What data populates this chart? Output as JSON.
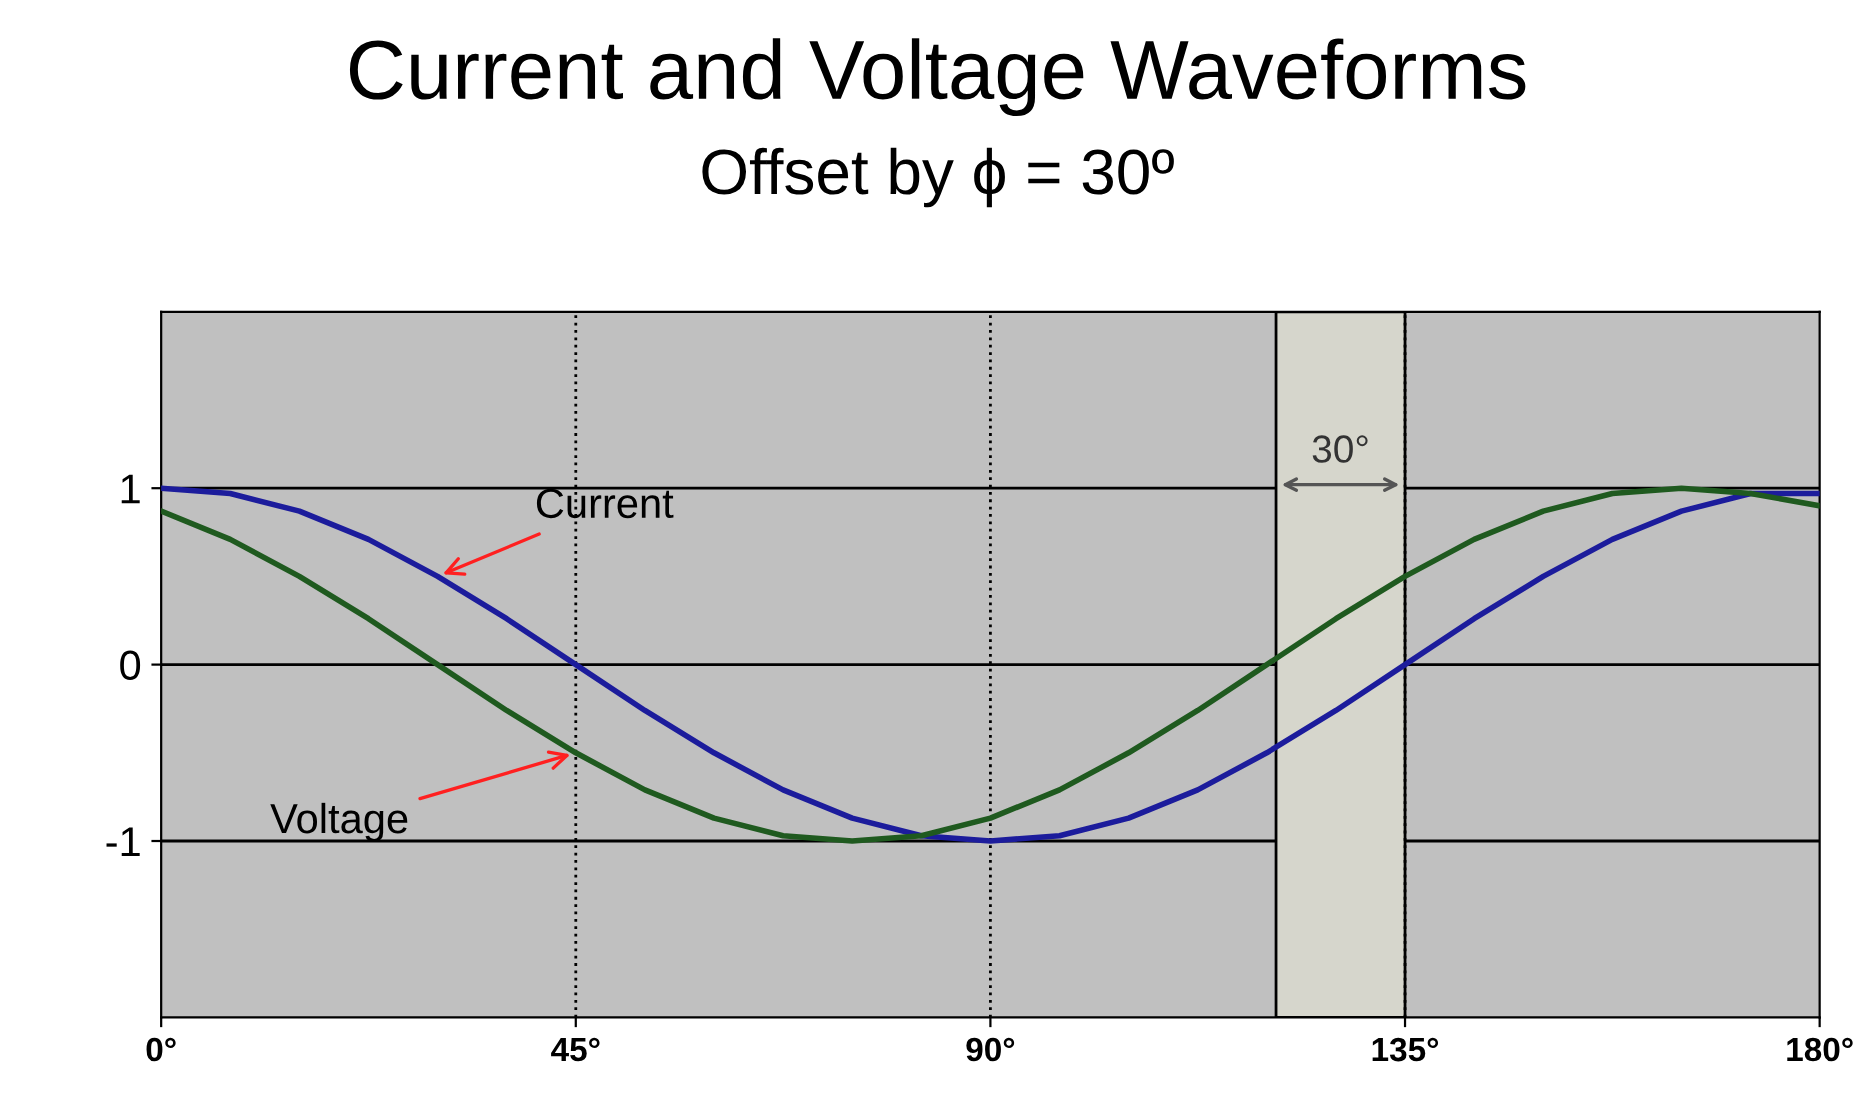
{
  "chart_data": {
    "type": "line",
    "title": "Current and Voltage Waveforms",
    "subtitle": "Offset by ϕ = 30º",
    "x": [
      0,
      7.5,
      15,
      22.5,
      30,
      37.5,
      45,
      52.5,
      60,
      67.5,
      75,
      82.5,
      90,
      97.5,
      105,
      112.5,
      120,
      127.5,
      135,
      142.5,
      150,
      157.5,
      165,
      172.5,
      180
    ],
    "series": [
      {
        "color": "#1c1c9c",
        "values": [
          1,
          0.97,
          0.87,
          0.71,
          0.5,
          0.26,
          0,
          -0.26,
          -0.5,
          -0.71,
          -0.87,
          -0.97,
          -1,
          -0.97,
          -0.87,
          -0.71,
          -0.5,
          -0.26,
          0,
          0.26,
          0.5,
          0.71,
          0.87,
          0.97,
          0.97
        ]
      },
      {
        "color": "#1f5a1f",
        "values": [
          0.87,
          0.71,
          0.5,
          0.26,
          0,
          -0.26,
          -0.5,
          -0.71,
          -0.87,
          -0.97,
          -1,
          -0.97,
          -0.87,
          -0.71,
          -0.5,
          -0.26,
          0,
          0.26,
          0.5,
          0.71,
          0.87,
          0.97,
          1,
          0.97,
          0.9
        ]
      }
    ],
    "xlim": [
      0,
      180
    ],
    "ylim": [
      -2,
      2
    ],
    "xticks": [
      {
        "value": 0,
        "label": "0°"
      },
      {
        "value": 45,
        "label": "45°"
      },
      {
        "value": 90,
        "label": "90°"
      },
      {
        "value": 135,
        "label": "135°"
      },
      {
        "value": 180,
        "label": "180°"
      }
    ],
    "yticks": [
      -1,
      0,
      1
    ],
    "grid": "y",
    "marker": "none",
    "line_style": "solid",
    "legend": false,
    "ref_lines": [
      {
        "axis": "x",
        "value": 45,
        "line_style": "dotted",
        "color": "#000000"
      },
      {
        "axis": "x",
        "value": 90,
        "line_style": "dotted",
        "color": "#000000"
      },
      {
        "axis": "x",
        "value": 135,
        "line_style": "dotted",
        "color": "#000000"
      }
    ],
    "bands": [
      {
        "axis": "x",
        "from": 121,
        "to": 135,
        "label": "30°",
        "color": "#d6d6cc"
      }
    ],
    "annotations": [
      {
        "text": "Current",
        "x": 30,
        "y": 0.5
      },
      {
        "text": "Voltage",
        "x": 45,
        "y": -0.5
      }
    ]
  }
}
